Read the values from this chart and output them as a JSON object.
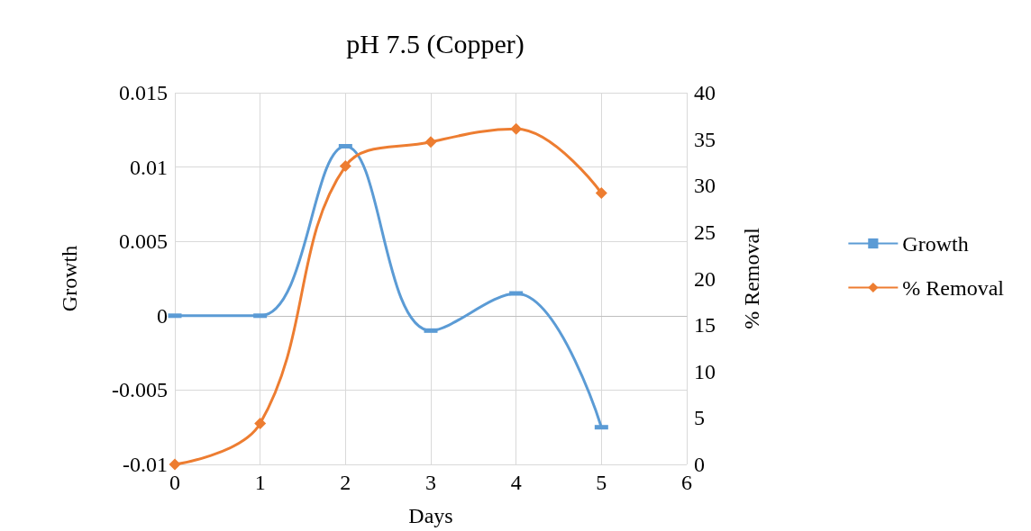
{
  "chart_data": {
    "type": "line",
    "title": "pH 7.5 (Copper)",
    "xlabel": "Days",
    "ylabel": "Growth",
    "y2label": "% Removal",
    "x": [
      0,
      1,
      2,
      3,
      4,
      5
    ],
    "series": [
      {
        "name": "Growth",
        "color": "#5b9bd5",
        "marker": "square",
        "values": [
          0,
          0,
          0.0114,
          -0.001,
          0.0015,
          -0.0075
        ]
      },
      {
        "name": "% Removal",
        "color": "#ed7d31",
        "marker": "diamond",
        "axis": "y2",
        "values": [
          0,
          4.4,
          32.1,
          34.7,
          36.1,
          29.2
        ]
      }
    ],
    "xlim": [
      0,
      6
    ],
    "xticks": [
      0,
      1,
      2,
      3,
      4,
      5,
      6
    ],
    "ylim": [
      -0.01,
      0.015
    ],
    "yticks": [
      -0.01,
      -0.005,
      0,
      0.005,
      0.01,
      0.015
    ],
    "y2lim": [
      0,
      40
    ],
    "y2ticks": [
      0,
      5,
      10,
      15,
      20,
      25,
      30,
      35,
      40
    ],
    "grid": true,
    "legend": "right",
    "line_style": "solid"
  }
}
